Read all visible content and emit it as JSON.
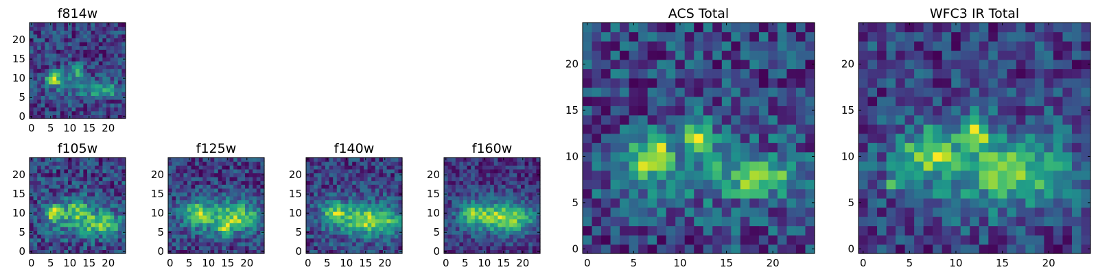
{
  "figure": {
    "description_colormap": "viridis"
  },
  "chart_data": [
    {
      "id": "f814w",
      "type": "heatmap",
      "title": "f814w",
      "grid_size": [
        25,
        25
      ],
      "xlim": [
        0,
        24
      ],
      "ylim": [
        0,
        24
      ],
      "xticks": [
        0,
        5,
        10,
        15,
        20
      ],
      "yticks": [
        0,
        5,
        10,
        15,
        20
      ],
      "noise_seed": 11,
      "noise_amp": 0.28,
      "background": 0.32,
      "sources": [
        {
          "x": 6,
          "y": 10,
          "sx": 1.6,
          "sy": 1.4,
          "amp": 0.8
        },
        {
          "x": 12,
          "y": 12,
          "sx": 1.3,
          "sy": 1.3,
          "amp": 0.55
        },
        {
          "x": 19,
          "y": 7,
          "sx": 3.5,
          "sy": 1.3,
          "amp": 0.6
        },
        {
          "x": 10,
          "y": 8,
          "sx": 4.5,
          "sy": 2.5,
          "amp": 0.25
        }
      ]
    },
    {
      "id": "f105w",
      "type": "heatmap",
      "title": "f105w",
      "grid_size": [
        25,
        25
      ],
      "xlim": [
        0,
        24
      ],
      "ylim": [
        0,
        24
      ],
      "xticks": [
        0,
        5,
        10,
        15,
        20
      ],
      "yticks": [
        0,
        5,
        10,
        15,
        20
      ],
      "noise_seed": 23,
      "noise_amp": 0.22,
      "background": 0.36,
      "sources": [
        {
          "x": 6,
          "y": 10,
          "sx": 1.5,
          "sy": 1.5,
          "amp": 0.65
        },
        {
          "x": 12,
          "y": 11,
          "sx": 1.8,
          "sy": 1.8,
          "amp": 0.35
        },
        {
          "x": 19,
          "y": 7,
          "sx": 3.8,
          "sy": 2.0,
          "amp": 0.45
        },
        {
          "x": 12,
          "y": 9,
          "sx": 6.0,
          "sy": 3.5,
          "amp": 0.3
        }
      ]
    },
    {
      "id": "f125w",
      "type": "heatmap",
      "title": "f125w",
      "grid_size": [
        25,
        25
      ],
      "xlim": [
        0,
        24
      ],
      "ylim": [
        0,
        24
      ],
      "xticks": [
        0,
        5,
        10,
        15,
        20
      ],
      "yticks": [
        0,
        5,
        10,
        15,
        20
      ],
      "noise_seed": 37,
      "noise_amp": 0.22,
      "background": 0.36,
      "sources": [
        {
          "x": 7,
          "y": 10,
          "sx": 2.0,
          "sy": 1.8,
          "amp": 0.55
        },
        {
          "x": 14,
          "y": 6,
          "sx": 1.4,
          "sy": 1.4,
          "amp": 0.35
        },
        {
          "x": 18,
          "y": 9,
          "sx": 4.0,
          "sy": 2.5,
          "amp": 0.45
        },
        {
          "x": 12,
          "y": 9,
          "sx": 7.0,
          "sy": 3.5,
          "amp": 0.35
        }
      ]
    },
    {
      "id": "f140w",
      "type": "heatmap",
      "title": "f140w",
      "grid_size": [
        25,
        25
      ],
      "xlim": [
        0,
        24
      ],
      "ylim": [
        0,
        24
      ],
      "xticks": [
        0,
        5,
        10,
        15,
        20
      ],
      "yticks": [
        0,
        5,
        10,
        15,
        20
      ],
      "noise_seed": 41,
      "noise_amp": 0.22,
      "background": 0.38,
      "sources": [
        {
          "x": 7,
          "y": 10,
          "sx": 2.0,
          "sy": 1.8,
          "amp": 0.5
        },
        {
          "x": 14,
          "y": 8,
          "sx": 2.5,
          "sy": 2.0,
          "amp": 0.4
        },
        {
          "x": 20,
          "y": 8,
          "sx": 3.5,
          "sy": 2.5,
          "amp": 0.45
        },
        {
          "x": 12,
          "y": 9,
          "sx": 7.0,
          "sy": 4.0,
          "amp": 0.35
        }
      ]
    },
    {
      "id": "f160w",
      "type": "heatmap",
      "title": "f160w",
      "grid_size": [
        25,
        25
      ],
      "xlim": [
        0,
        24
      ],
      "ylim": [
        0,
        24
      ],
      "xticks": [
        0,
        5,
        10,
        15,
        20
      ],
      "yticks": [
        0,
        5,
        10,
        15,
        20
      ],
      "noise_seed": 53,
      "noise_amp": 0.2,
      "background": 0.34,
      "sources": [
        {
          "x": 7,
          "y": 10,
          "sx": 2.2,
          "sy": 2.0,
          "amp": 0.5
        },
        {
          "x": 13,
          "y": 9,
          "sx": 3.0,
          "sy": 2.0,
          "amp": 0.45
        },
        {
          "x": 19,
          "y": 9,
          "sx": 3.5,
          "sy": 2.5,
          "amp": 0.45
        },
        {
          "x": 12,
          "y": 9,
          "sx": 7.5,
          "sy": 4.0,
          "amp": 0.3
        }
      ]
    },
    {
      "id": "acs-total",
      "type": "heatmap",
      "title": "ACS Total",
      "grid_size": [
        25,
        25
      ],
      "xlim": [
        0,
        24
      ],
      "ylim": [
        0,
        24
      ],
      "xticks": [
        0,
        5,
        10,
        15,
        20
      ],
      "yticks": [
        0,
        5,
        10,
        15,
        20
      ],
      "noise_seed": 67,
      "noise_amp": 0.28,
      "background": 0.34,
      "sources": [
        {
          "x": 7,
          "y": 10,
          "sx": 1.5,
          "sy": 1.5,
          "amp": 0.75
        },
        {
          "x": 12,
          "y": 12.5,
          "sx": 1.1,
          "sy": 1.2,
          "amp": 0.6
        },
        {
          "x": 19,
          "y": 7.5,
          "sx": 3.0,
          "sy": 1.2,
          "amp": 0.6
        },
        {
          "x": 12,
          "y": 9,
          "sx": 6.0,
          "sy": 3.0,
          "amp": 0.25
        }
      ]
    },
    {
      "id": "wfc3-ir-total",
      "type": "heatmap",
      "title": "WFC3 IR Total",
      "grid_size": [
        25,
        25
      ],
      "xlim": [
        0,
        24
      ],
      "ylim": [
        0,
        24
      ],
      "xticks": [
        0,
        5,
        10,
        15,
        20
      ],
      "yticks": [
        0,
        5,
        10,
        15,
        20
      ],
      "noise_seed": 79,
      "noise_amp": 0.24,
      "background": 0.38,
      "sources": [
        {
          "x": 7,
          "y": 10.5,
          "sx": 1.8,
          "sy": 1.6,
          "amp": 0.55
        },
        {
          "x": 12,
          "y": 12.5,
          "sx": 1.2,
          "sy": 1.3,
          "amp": 0.55
        },
        {
          "x": 17,
          "y": 8,
          "sx": 3.5,
          "sy": 2.0,
          "amp": 0.45
        },
        {
          "x": 3,
          "y": 7,
          "sx": 0.6,
          "sy": 0.5,
          "amp": 0.6
        },
        {
          "x": 12,
          "y": 9,
          "sx": 7.0,
          "sy": 3.5,
          "amp": 0.35
        }
      ]
    }
  ]
}
